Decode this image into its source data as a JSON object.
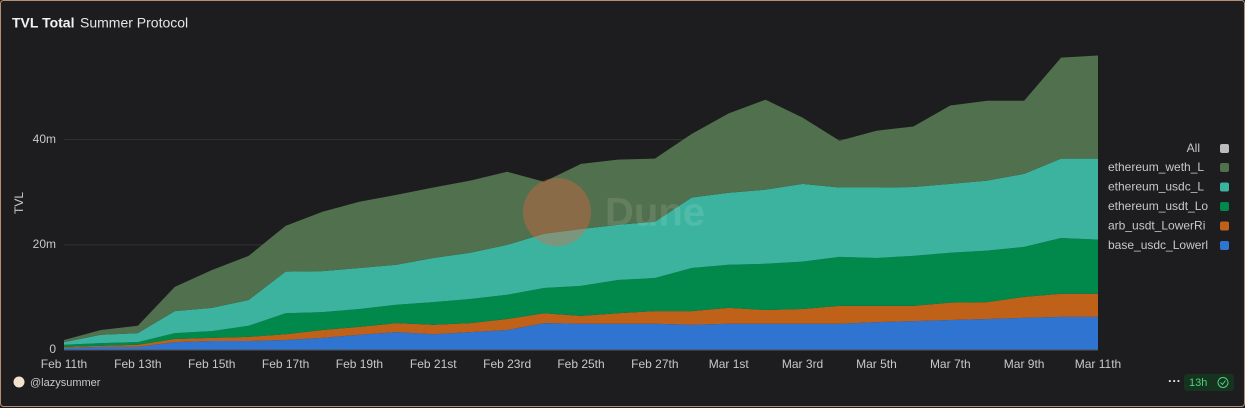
{
  "chart_data": {
    "type": "stacked_area",
    "title": "TVL Total",
    "subtitle": "Summer Protocol",
    "y_label": "TVL",
    "watermark": "Dune",
    "footer_user": "@lazysummer",
    "footer_age": "13h",
    "legend_all": "All",
    "categories": [
      "Feb 11th",
      null,
      "Feb 13th",
      null,
      "Feb 15th",
      null,
      "Feb 17th",
      null,
      "Feb 19th",
      null,
      "Feb 21st",
      null,
      "Feb 23rd",
      null,
      "Feb 25th",
      null,
      "Feb 27th",
      null,
      "Mar 1st",
      null,
      "Mar 3rd",
      null,
      "Mar 5th",
      null,
      "Mar 7th",
      null,
      "Mar 9th",
      null,
      "Mar 11th"
    ],
    "series": [
      {
        "name": "ethereum_weth_L",
        "color": "#51704d",
        "values": [
          0.4,
          0.9,
          1.4,
          4.6,
          7.2,
          8.4,
          8.7,
          11.3,
          12.6,
          13.3,
          13.4,
          13.7,
          13.9,
          9.9,
          12.4,
          12.4,
          12,
          12.1,
          15.1,
          17.1,
          12.6,
          8.9,
          10.8,
          11.5,
          14.9,
          15.2,
          13.9,
          19.2,
          19.6
        ]
      },
      {
        "name": "ethereum_usdc_L",
        "color": "#3cb39f",
        "values": [
          0.5,
          1.6,
          1.7,
          4.2,
          4.4,
          4.9,
          7.9,
          7.8,
          7.8,
          7.6,
          8.4,
          8.8,
          9.5,
          10.3,
          10.8,
          10.5,
          10.7,
          13.4,
          13.7,
          14.1,
          14.8,
          13.2,
          13.4,
          13.1,
          13.1,
          13.3,
          13.9,
          15.1,
          15.4
        ]
      },
      {
        "name": "ethereum_usdt_Lo",
        "color": "#00894a",
        "values": [
          0.4,
          0.5,
          0.5,
          1.1,
          1.3,
          2.1,
          4,
          3.4,
          3.4,
          3.5,
          4.3,
          4.6,
          4.6,
          4.8,
          5.7,
          6.3,
          6.3,
          8.2,
          8.2,
          8.8,
          9,
          9.3,
          9.1,
          9.5,
          9.5,
          9.8,
          9.5,
          10.6,
          10.3
        ]
      },
      {
        "name": "arb_usdt_LowerRi",
        "color": "#c0611a",
        "values": [
          0.2,
          0.2,
          0.4,
          0.6,
          0.6,
          0.8,
          1.1,
          1.5,
          1.5,
          1.7,
          1.8,
          1.7,
          2.1,
          1.9,
          1.5,
          2,
          2.4,
          2.6,
          3,
          2.6,
          2.8,
          3.4,
          3.1,
          2.9,
          3.3,
          3.2,
          4,
          4.4,
          4.4
        ]
      },
      {
        "name": "base_usdc_Lowerl",
        "color": "#2f74d0",
        "values": [
          0.4,
          0.6,
          0.6,
          1.5,
          1.7,
          1.7,
          1.9,
          2.3,
          2.9,
          3.4,
          3,
          3.4,
          3.8,
          5.1,
          5,
          5,
          5,
          4.8,
          5,
          5,
          5,
          5,
          5.3,
          5.5,
          5.7,
          5.9,
          6.1,
          6.3,
          6.3
        ]
      }
    ],
    "ylim": [
      0,
      58
    ],
    "yticks": [
      0,
      {
        "value": 20,
        "label": "20m"
      },
      {
        "value": 40,
        "label": "40m"
      }
    ],
    "grid": true,
    "legend": "right"
  }
}
